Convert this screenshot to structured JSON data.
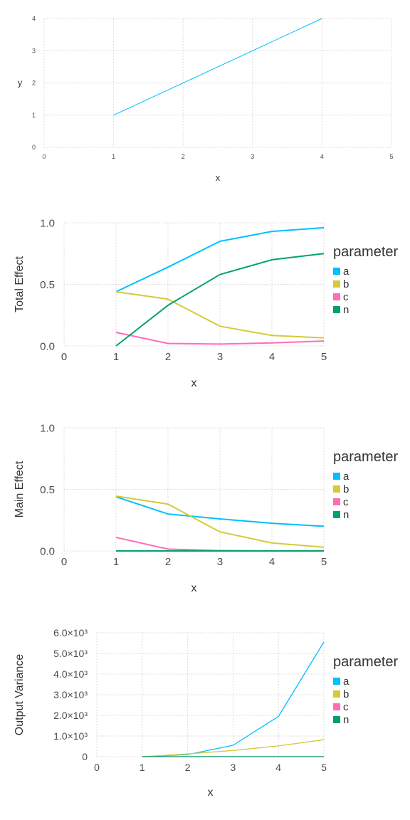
{
  "colors": {
    "a": "#00bfff",
    "b": "#d4ca3a",
    "c": "#ff6db6",
    "n": "#00a170"
  },
  "chart_data": [
    {
      "type": "line",
      "xlabel": "x",
      "ylabel": "y",
      "xlim": [
        0,
        5
      ],
      "ylim": [
        0,
        4
      ],
      "x_ticks": [
        0,
        1,
        2,
        3,
        4,
        5
      ],
      "x_tick_labels": [
        "0",
        "1",
        "2",
        "3",
        "4",
        "5"
      ],
      "y_ticks": [
        0,
        1,
        2,
        3,
        4
      ],
      "y_tick_labels": [
        "0",
        "1",
        "2",
        "3",
        "4"
      ],
      "grid": true,
      "legend_title": "",
      "series": [
        {
          "key": "a",
          "x": [
            1,
            4
          ],
          "values": [
            1,
            4
          ]
        }
      ]
    },
    {
      "type": "line",
      "xlabel": "x",
      "ylabel": "Total Effect",
      "xlim": [
        0,
        5
      ],
      "ylim": [
        0,
        1
      ],
      "x_ticks": [
        0,
        1,
        2,
        3,
        4,
        5
      ],
      "x_tick_labels": [
        "0",
        "1",
        "2",
        "3",
        "4",
        "5"
      ],
      "y_ticks": [
        0,
        0.5,
        1
      ],
      "y_tick_labels": [
        "0.0",
        "0.5",
        "1.0"
      ],
      "grid": true,
      "legend_title": "parameter",
      "legend_position": "right",
      "series": [
        {
          "key": "a",
          "name": "a",
          "x": [
            1,
            2,
            3,
            4,
            5
          ],
          "values": [
            0.44,
            0.64,
            0.85,
            0.93,
            0.96
          ]
        },
        {
          "key": "b",
          "name": "b",
          "x": [
            1,
            2,
            3,
            4,
            5
          ],
          "values": [
            0.44,
            0.38,
            0.16,
            0.085,
            0.065
          ]
        },
        {
          "key": "c",
          "name": "c",
          "x": [
            1,
            2,
            3,
            4,
            5
          ],
          "values": [
            0.11,
            0.02,
            0.015,
            0.025,
            0.04
          ]
        },
        {
          "key": "n",
          "name": "n",
          "x": [
            1,
            2,
            3,
            4,
            5
          ],
          "values": [
            0.0,
            0.33,
            0.58,
            0.7,
            0.75
          ]
        }
      ]
    },
    {
      "type": "line",
      "xlabel": "x",
      "ylabel": "Main Effect",
      "xlim": [
        0,
        5
      ],
      "ylim": [
        0,
        1
      ],
      "x_ticks": [
        0,
        1,
        2,
        3,
        4,
        5
      ],
      "x_tick_labels": [
        "0",
        "1",
        "2",
        "3",
        "4",
        "5"
      ],
      "y_ticks": [
        0,
        0.5,
        1
      ],
      "y_tick_labels": [
        "0.0",
        "0.5",
        "1.0"
      ],
      "grid": true,
      "legend_title": "parameter",
      "legend_position": "right",
      "series": [
        {
          "key": "a",
          "name": "a",
          "x": [
            1,
            2,
            3,
            4,
            5
          ],
          "values": [
            0.44,
            0.3,
            0.26,
            0.225,
            0.2
          ]
        },
        {
          "key": "b",
          "name": "b",
          "x": [
            1,
            2,
            3,
            4,
            5
          ],
          "values": [
            0.445,
            0.38,
            0.155,
            0.065,
            0.03
          ]
        },
        {
          "key": "c",
          "name": "c",
          "x": [
            1,
            2,
            3,
            4,
            5
          ],
          "values": [
            0.11,
            0.015,
            0.003,
            0.0,
            0.0
          ]
        },
        {
          "key": "n",
          "name": "n",
          "x": [
            1,
            2,
            3,
            4,
            5
          ],
          "values": [
            0.0,
            0.0,
            0.0,
            0.0,
            0.0
          ]
        }
      ]
    },
    {
      "type": "line",
      "xlabel": "x",
      "ylabel": "Output Variance",
      "xlim": [
        0,
        5
      ],
      "ylim": [
        0,
        6000
      ],
      "x_ticks": [
        0,
        1,
        2,
        3,
        4,
        5
      ],
      "x_tick_labels": [
        "0",
        "1",
        "2",
        "3",
        "4",
        "5"
      ],
      "y_ticks": [
        0,
        1000,
        2000,
        3000,
        4000,
        5000,
        6000
      ],
      "y_tick_labels": [
        "0",
        "1.0×10³",
        "2.0×10³",
        "3.0×10³",
        "4.0×10³",
        "5.0×10³",
        "6.0×10³"
      ],
      "grid": true,
      "legend_title": "parameter",
      "legend_position": "right",
      "series": [
        {
          "key": "a",
          "name": "a",
          "x": [
            1,
            2,
            3,
            4,
            5
          ],
          "values": [
            0,
            100,
            550,
            1950,
            5550
          ]
        },
        {
          "key": "b",
          "name": "b",
          "x": [
            1,
            2,
            3,
            4,
            5
          ],
          "values": [
            0,
            130,
            300,
            520,
            820
          ]
        },
        {
          "key": "c",
          "name": "c",
          "x": [
            1,
            2,
            3,
            4,
            5
          ],
          "values": [
            0,
            0,
            0,
            0,
            0
          ]
        },
        {
          "key": "n",
          "name": "n",
          "x": [
            1,
            2,
            3,
            4,
            5
          ],
          "values": [
            0,
            0,
            0,
            0,
            0
          ]
        }
      ]
    }
  ]
}
